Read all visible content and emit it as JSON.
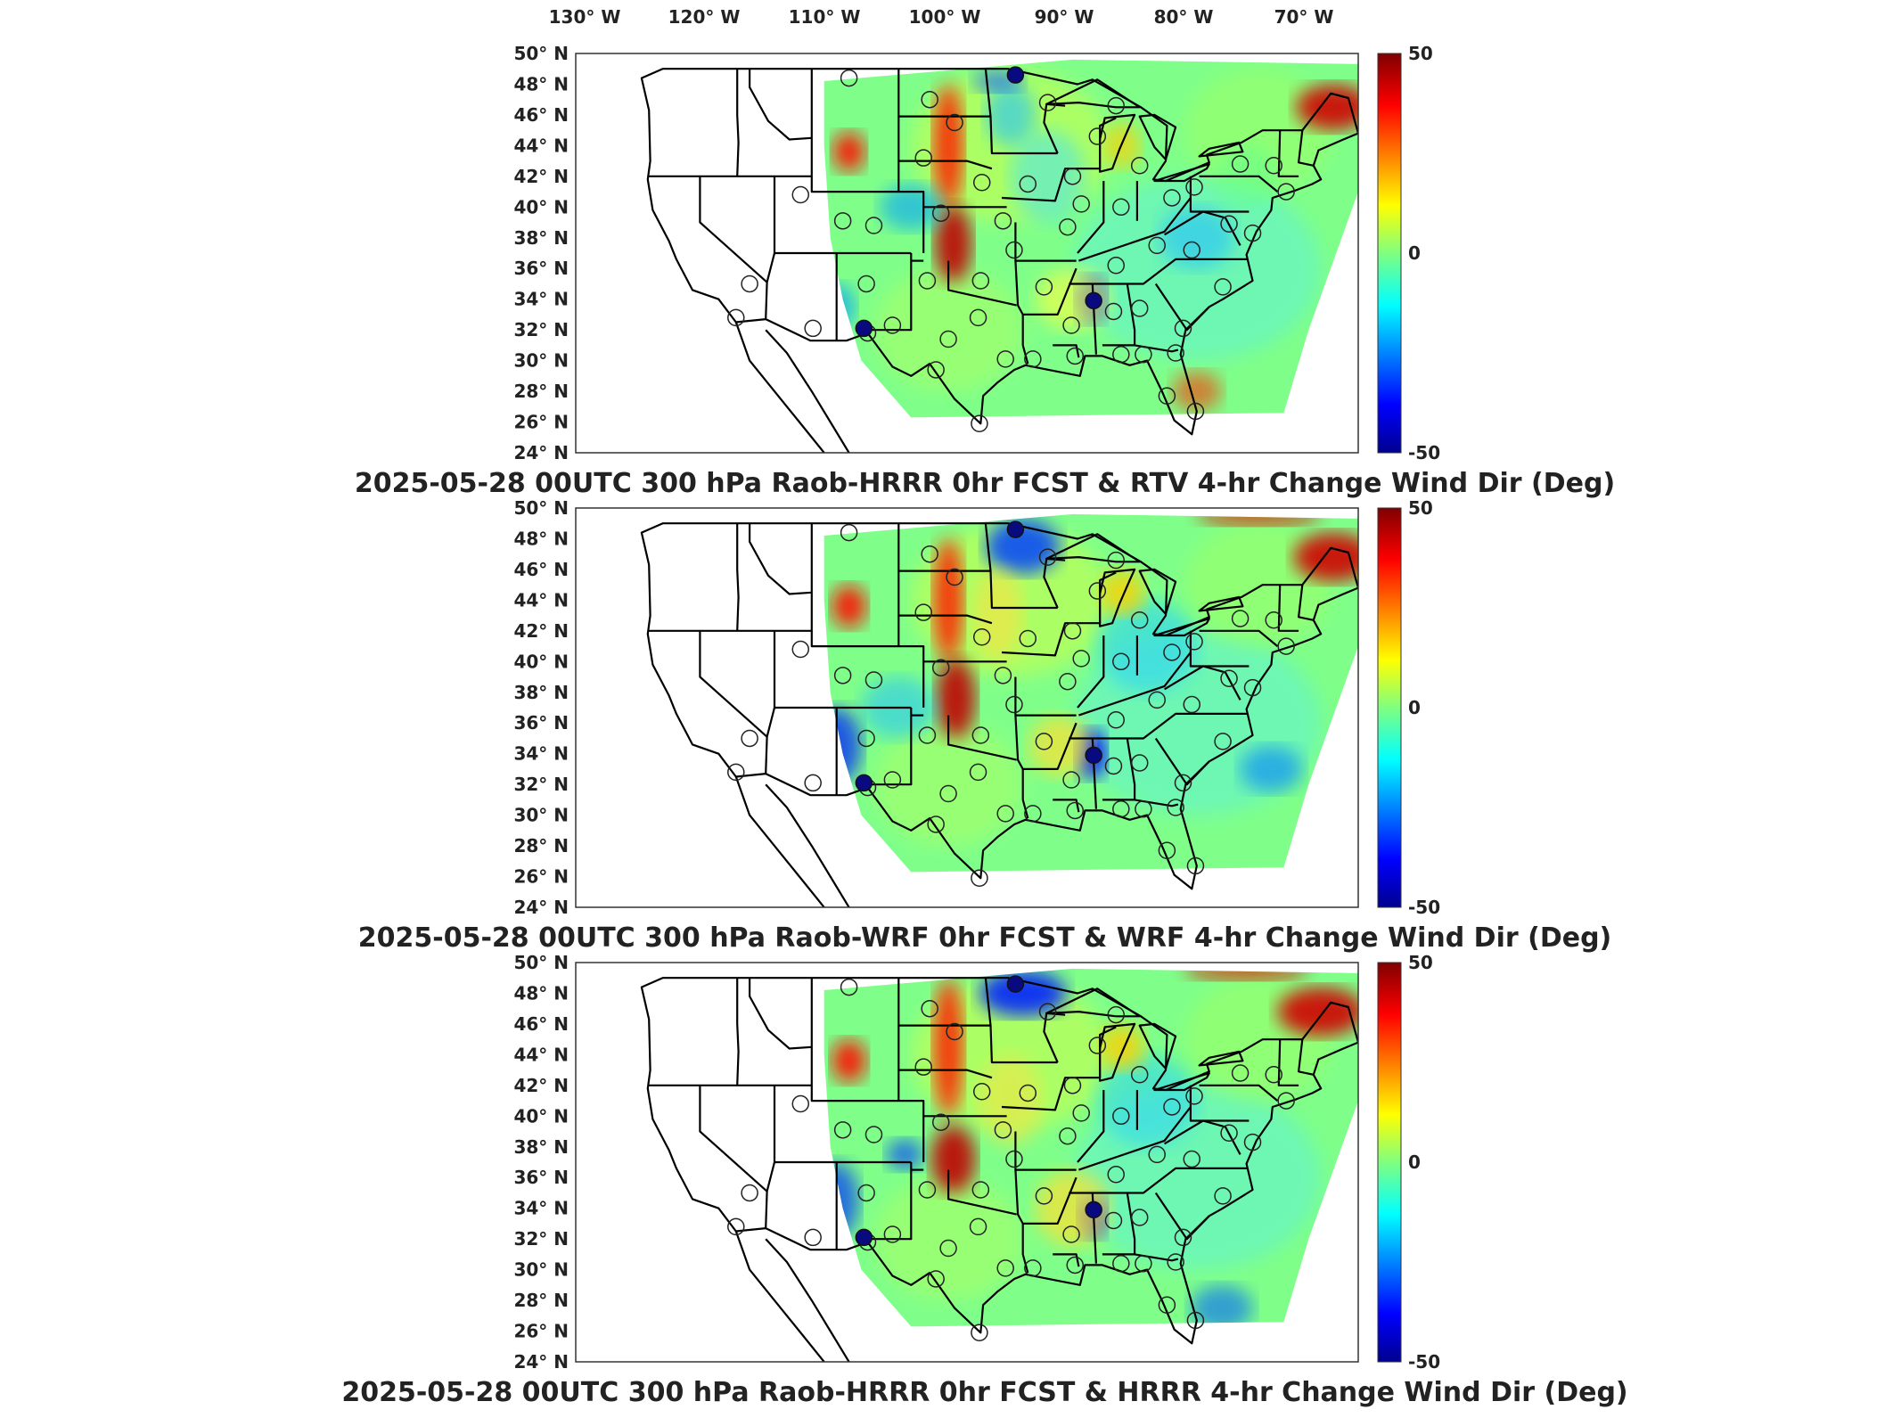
{
  "top_axis": {
    "lon_labels": [
      "130° W",
      "120° W",
      "110° W",
      "100° W",
      "90° W",
      "80° W",
      "70° W"
    ]
  },
  "lat_labels": [
    "50° N",
    "48° N",
    "46° N",
    "44° N",
    "42° N",
    "40° N",
    "38° N",
    "36° N",
    "34° N",
    "32° N",
    "30° N",
    "28° N",
    "26° N",
    "24° N"
  ],
  "colorbar": {
    "max_label": "50",
    "mid_label": "0",
    "min_label": "-50",
    "range": [
      -50,
      50
    ],
    "colormap": "jet",
    "colors": [
      "#00008f",
      "#0000ff",
      "#00ffff",
      "#ffff00",
      "#ff0000",
      "#800000"
    ]
  },
  "panels": [
    {
      "id": "rtv",
      "title": "2025-05-28 00UTC 300 hPa Raob-HRRR 0hr FCST & RTV 4-hr Change Wind Dir (Deg)"
    },
    {
      "id": "wrf",
      "title": "2025-05-28 00UTC 300 hPa Raob-WRF 0hr FCST & WRF 4-hr Change Wind Dir (Deg)"
    },
    {
      "id": "hrrr",
      "title": "2025-05-28 00UTC 300 hPa Raob-HRRR 0hr FCST & HRRR 4-hr Change Wind Dir (Deg)"
    }
  ],
  "map": {
    "projection": "lat/lon, CONUS",
    "lon_range": [
      -130,
      -67
    ],
    "lat_range": [
      24,
      50
    ],
    "background": "#ffffff",
    "border_color": "#000000"
  }
}
